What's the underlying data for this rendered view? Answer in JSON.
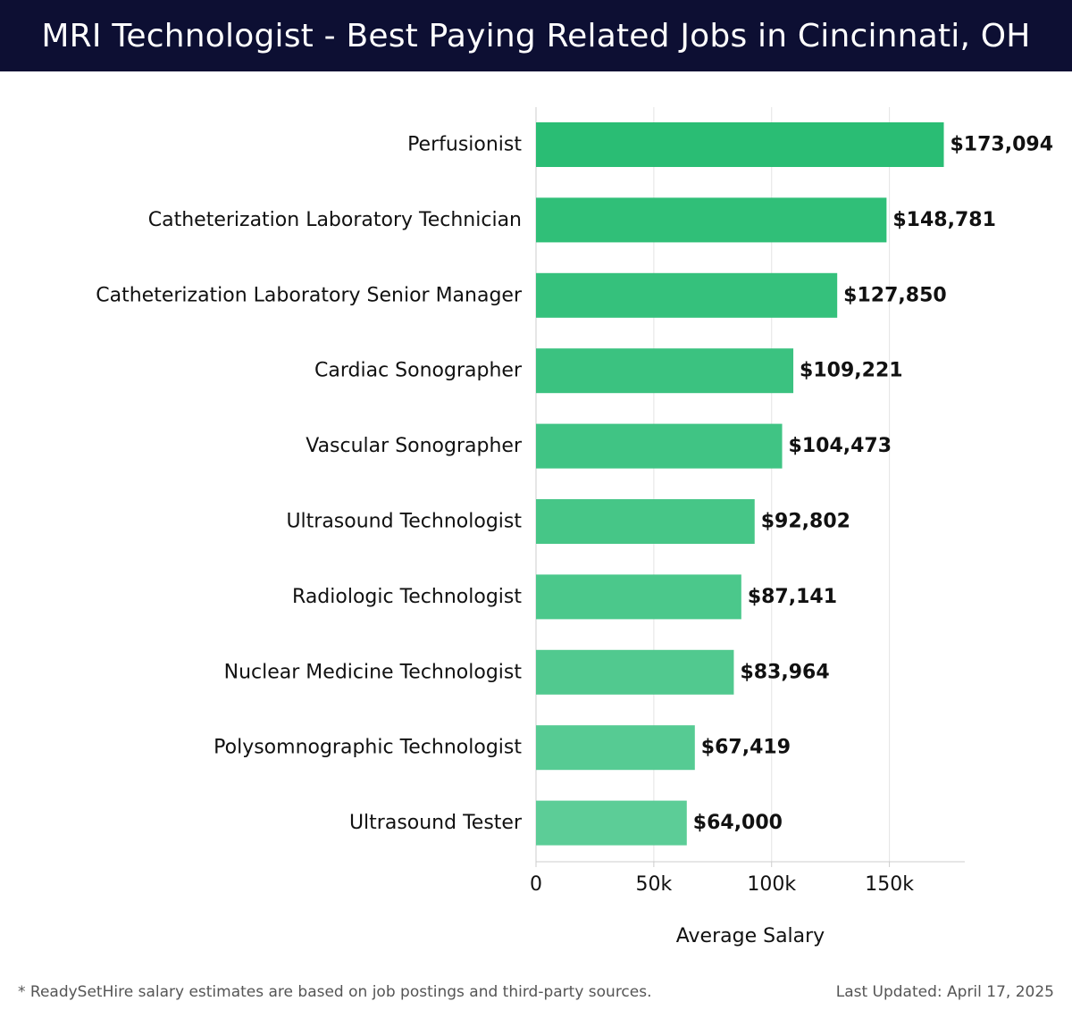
{
  "header": {
    "title": "MRI Technologist - Best Paying Related Jobs in Cincinnati, OH"
  },
  "chart_data": {
    "type": "bar",
    "orientation": "horizontal",
    "categories": [
      "Perfusionist",
      "Catheterization Laboratory Technician",
      "Catheterization Laboratory Senior Manager",
      "Cardiac Sonographer",
      "Vascular Sonographer",
      "Ultrasound Technologist",
      "Radiologic Technologist",
      "Nuclear Medicine Technologist",
      "Polysomnographic Technologist",
      "Ultrasound Tester"
    ],
    "values": [
      173094,
      148781,
      127850,
      109221,
      104473,
      92802,
      87141,
      83964,
      67419,
      64000
    ],
    "value_labels": [
      "$173,094",
      "$148,781",
      "$127,850",
      "$109,221",
      "$104,473",
      "$92,802",
      "$87,141",
      "$83,964",
      "$67,419",
      "$64,000"
    ],
    "xlabel": "Average Salary",
    "xlim": [
      0,
      182000
    ],
    "x_ticks": [
      0,
      50000,
      100000,
      150000
    ],
    "x_tick_labels": [
      "0",
      "50k",
      "100k",
      "150k"
    ],
    "grid": "vertical",
    "colors": {
      "bar_top": "#2abd74",
      "bar_bottom": "#5ccd97",
      "grid": "#e3e3e3",
      "axis": "#cccccc"
    }
  },
  "footer": {
    "note": "* ReadySetHire salary estimates are based on job postings and third-party sources.",
    "updated": "Last Updated: April 17, 2025"
  }
}
